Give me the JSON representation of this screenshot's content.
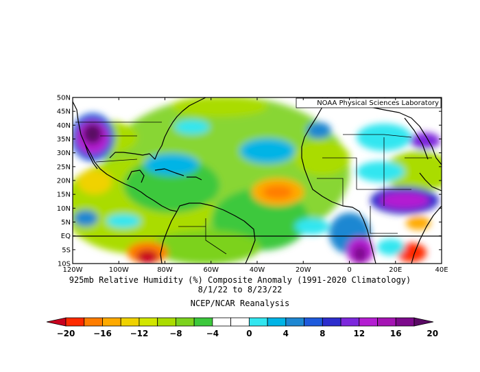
{
  "map": {
    "credit": "NOAA Physical Sciences Laboratory",
    "lat_labels": [
      "50N",
      "45N",
      "40N",
      "35N",
      "30N",
      "25N",
      "20N",
      "15N",
      "10N",
      "5N",
      "EQ",
      "5S",
      "10S"
    ],
    "lon_labels": [
      "120W",
      "100W",
      "80W",
      "60W",
      "40W",
      "20W",
      "0",
      "20E",
      "40E"
    ]
  },
  "caption": {
    "line1": "925mb Relative Humidity (%) Composite Anomaly (1991-2020 Climatology)",
    "line2": "8/1/22  to 8/23/22",
    "line3": "NCEP/NCAR Reanalysis"
  },
  "colorbar": {
    "tick_labels": [
      "-20",
      "-16",
      "-12",
      "-8",
      "-4",
      "0",
      "4",
      "8",
      "12",
      "16",
      "20"
    ],
    "colors": [
      "#c8001e",
      "#ff2a00",
      "#ff7d00",
      "#ffaa00",
      "#f0d200",
      "#d2e600",
      "#aadc00",
      "#7cd21e",
      "#3cc83c",
      "#ffffff",
      "#ffffff",
      "#32e6f0",
      "#00b4e6",
      "#1e87d2",
      "#1e5adc",
      "#2d2dcd",
      "#7d28dc",
      "#b41ed2",
      "#a514b4",
      "#7d0a8c",
      "#5a0a64"
    ]
  }
}
